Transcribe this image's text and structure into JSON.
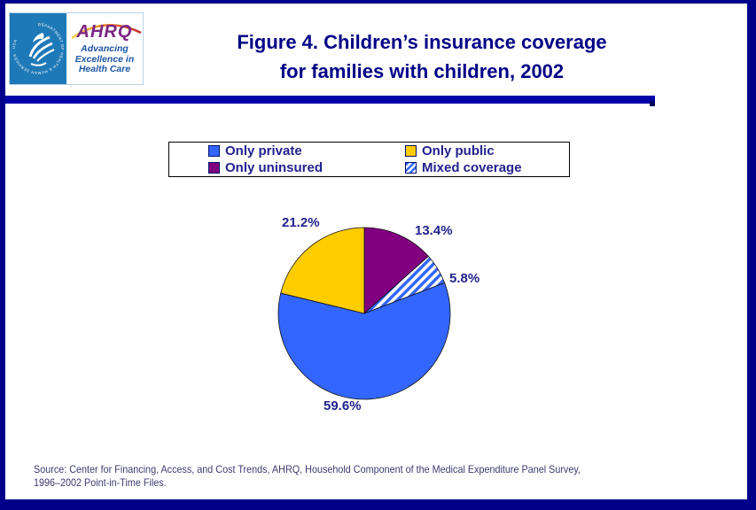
{
  "header": {
    "title_line1": "Figure 4. Children’s insurance coverage",
    "title_line2": "for families with children, 2002"
  },
  "logo": {
    "hhs_seal_ring_text": "DEPARTMENT OF HEALTH & HUMAN SERVICES · USA",
    "ahrq_acronym": "AHRQ",
    "tagline_line1": "Advancing",
    "tagline_line2": "Excellence in",
    "tagline_line3": "Health Care"
  },
  "legend": {
    "items": [
      {
        "label": "Only private",
        "color": "#3366FF",
        "swatch": "solid"
      },
      {
        "label": "Only public",
        "color": "#FFCC00",
        "swatch": "solid"
      },
      {
        "label": "Only uninsured",
        "color": "#800080",
        "swatch": "solid"
      },
      {
        "label": "Mixed coverage",
        "color": "#3366FF",
        "swatch": "hatch"
      }
    ]
  },
  "chart_data": {
    "type": "pie",
    "title": "Figure 4. Children’s insurance coverage for families with children, 2002",
    "categories": [
      "Only private",
      "Only public",
      "Only uninsured",
      "Mixed coverage"
    ],
    "values": [
      59.6,
      21.2,
      13.4,
      5.8
    ],
    "unit": "percent",
    "legend_position": "top",
    "slices_clockwise_from_top": [
      {
        "label": "Only uninsured",
        "value": 13.4,
        "fill": "#800080",
        "pattern": "solid"
      },
      {
        "label": "Mixed coverage",
        "value": 5.8,
        "fill": "#3366FF",
        "pattern": "hatch"
      },
      {
        "label": "Only private",
        "value": 59.6,
        "fill": "#3366FF",
        "pattern": "solid"
      },
      {
        "label": "Only public",
        "value": 21.2,
        "fill": "#FFCC00",
        "pattern": "solid"
      }
    ],
    "labels": [
      {
        "text": "21.2%"
      },
      {
        "text": "13.4%"
      },
      {
        "text": "5.8%"
      },
      {
        "text": "59.6%"
      }
    ]
  },
  "footer": {
    "source_line1": "Source: Center for Financing, Access, and Cost Trends, AHRQ, Household Component of the Medical Expenditure Panel Survey,",
    "source_line2": "1996–2002 Point-in-Time Files."
  },
  "colors": {
    "page_border": "#00008B",
    "title_rule": "#0000A6",
    "title_text": "#000087",
    "label_text": "#22228E",
    "source_text": "#3B3B70"
  }
}
